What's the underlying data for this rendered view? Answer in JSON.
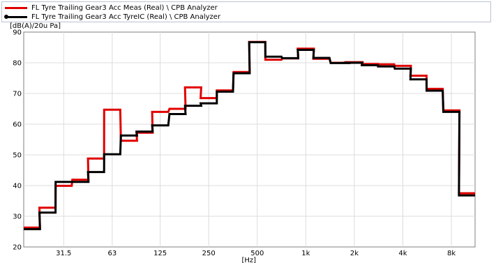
{
  "chart_data": {
    "type": "line",
    "step": true,
    "ylabel": "[dB(A)/20u Pa]",
    "xlabel": "[Hz]",
    "x_scale": "log",
    "xlim": [
      17.8,
      11220
    ],
    "ylim": [
      20,
      90
    ],
    "yticks": [
      20,
      30,
      40,
      50,
      60,
      70,
      80,
      90
    ],
    "xticks": [
      {
        "value": 31.5,
        "label": "31.5"
      },
      {
        "value": 63,
        "label": "63"
      },
      {
        "value": 125,
        "label": "125"
      },
      {
        "value": 250,
        "label": "250"
      },
      {
        "value": 500,
        "label": "500"
      },
      {
        "value": 1000,
        "label": "1k"
      },
      {
        "value": 2000,
        "label": "2k"
      },
      {
        "value": 4000,
        "label": "4k"
      },
      {
        "value": 8000,
        "label": "8k"
      }
    ],
    "grid": true,
    "legend_position": "top",
    "bands": [
      20,
      25,
      31.5,
      40,
      50,
      63,
      80,
      100,
      125,
      160,
      200,
      250,
      315,
      400,
      500,
      630,
      800,
      1000,
      1250,
      1600,
      2000,
      2500,
      3150,
      4000,
      5000,
      6300,
      8000,
      10000
    ],
    "series": [
      {
        "name": "FL Tyre Trailing Gear3 Acc Meas (Real) \\ CPB Analyzer",
        "color": "#e00000",
        "values": [
          26.3,
          32.8,
          39.9,
          41.9,
          48.8,
          64.7,
          54.6,
          57.2,
          64.0,
          65.0,
          72.0,
          68.5,
          71.0,
          77.0,
          86.8,
          81.0,
          81.4,
          84.6,
          81.3,
          80.0,
          80.2,
          79.6,
          79.5,
          79.0,
          75.8,
          71.5,
          64.5,
          37.5
        ]
      },
      {
        "name": "FL Tyre Trailing Gear3 Acc TyreIC (Real) \\ CPB Analyzer",
        "color": "#000000",
        "values": [
          25.8,
          31.2,
          41.2,
          41.2,
          44.4,
          50.2,
          56.3,
          57.6,
          59.6,
          63.3,
          66.0,
          66.8,
          70.6,
          76.6,
          86.7,
          82.0,
          81.5,
          84.2,
          81.6,
          79.9,
          80.0,
          79.2,
          78.8,
          78.1,
          74.6,
          70.9,
          64.0,
          36.8
        ]
      }
    ]
  }
}
